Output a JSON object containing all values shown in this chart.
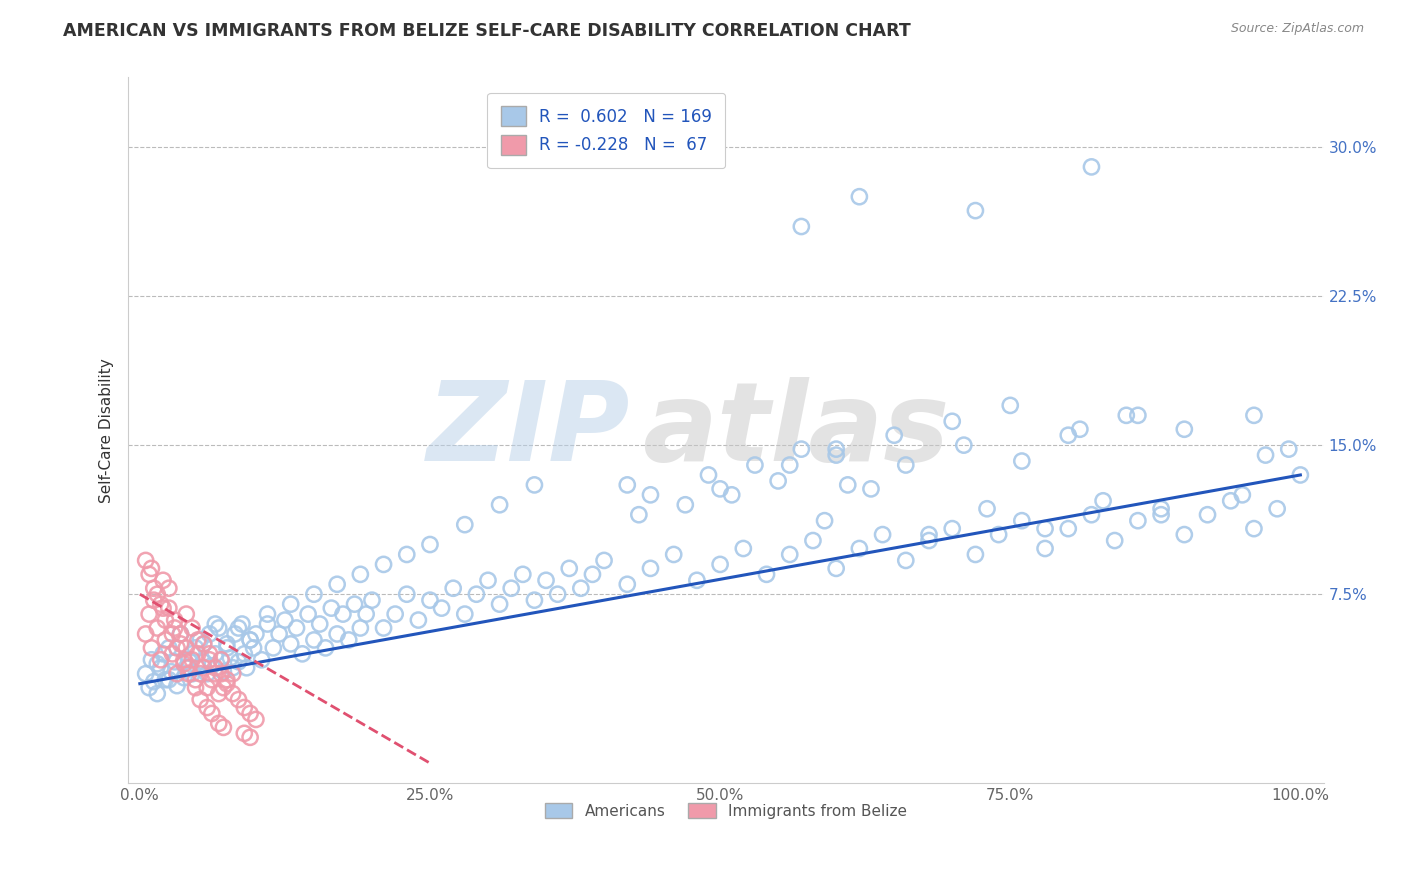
{
  "title": "AMERICAN VS IMMIGRANTS FROM BELIZE SELF-CARE DISABILITY CORRELATION CHART",
  "source": "Source: ZipAtlas.com",
  "ylabel": "Self-Care Disability",
  "xlabel": "",
  "xlim": [
    -0.01,
    1.02
  ],
  "ylim": [
    -0.02,
    0.335
  ],
  "yticks": [
    0.075,
    0.15,
    0.225,
    0.3
  ],
  "ytick_labels": [
    "7.5%",
    "15.0%",
    "22.5%",
    "30.0%"
  ],
  "xticks": [
    0.0,
    0.25,
    0.5,
    0.75,
    1.0
  ],
  "xtick_labels": [
    "0.0%",
    "25.0%",
    "50.0%",
    "75.0%",
    "100.0%"
  ],
  "blue_R": 0.602,
  "blue_N": 169,
  "pink_R": -0.228,
  "pink_N": 67,
  "blue_color": "#A8C8E8",
  "pink_color": "#F09AAA",
  "blue_line_color": "#2255BB",
  "pink_line_color": "#E05070",
  "background_color": "#ffffff",
  "watermark_zip": "ZIP",
  "watermark_atlas": "atlas",
  "title_fontsize": 12.5,
  "axis_label_fontsize": 11,
  "tick_fontsize": 11,
  "legend_fontsize": 12,
  "blue_scatter_x": [
    0.005,
    0.008,
    0.01,
    0.012,
    0.015,
    0.018,
    0.02,
    0.022,
    0.025,
    0.027,
    0.03,
    0.032,
    0.035,
    0.038,
    0.04,
    0.042,
    0.045,
    0.048,
    0.05,
    0.052,
    0.055,
    0.058,
    0.06,
    0.062,
    0.065,
    0.068,
    0.07,
    0.072,
    0.075,
    0.078,
    0.08,
    0.082,
    0.085,
    0.088,
    0.09,
    0.092,
    0.095,
    0.098,
    0.1,
    0.105,
    0.11,
    0.115,
    0.12,
    0.125,
    0.13,
    0.135,
    0.14,
    0.145,
    0.15,
    0.155,
    0.16,
    0.165,
    0.17,
    0.175,
    0.18,
    0.185,
    0.19,
    0.195,
    0.2,
    0.21,
    0.22,
    0.23,
    0.24,
    0.25,
    0.26,
    0.27,
    0.28,
    0.29,
    0.3,
    0.31,
    0.32,
    0.33,
    0.34,
    0.35,
    0.36,
    0.37,
    0.38,
    0.39,
    0.4,
    0.42,
    0.44,
    0.46,
    0.48,
    0.5,
    0.52,
    0.54,
    0.56,
    0.58,
    0.6,
    0.62,
    0.64,
    0.66,
    0.68,
    0.7,
    0.72,
    0.74,
    0.76,
    0.78,
    0.8,
    0.82,
    0.84,
    0.86,
    0.88,
    0.9,
    0.92,
    0.94,
    0.96,
    0.98,
    1.0,
    0.015,
    0.025,
    0.035,
    0.045,
    0.055,
    0.065,
    0.075,
    0.085,
    0.095,
    0.11,
    0.13,
    0.15,
    0.17,
    0.19,
    0.21,
    0.23,
    0.25,
    0.28,
    0.31,
    0.34,
    0.42,
    0.5,
    0.56,
    0.6,
    0.65,
    0.7,
    0.75,
    0.8,
    0.85,
    0.9,
    0.44,
    0.49,
    0.53,
    0.57,
    0.61,
    0.66,
    0.71,
    0.76,
    0.81,
    0.86,
    0.57,
    0.62,
    0.72,
    0.82,
    0.96,
    0.97,
    0.99,
    0.43,
    0.47,
    0.51,
    0.55,
    0.59,
    0.63,
    0.68,
    0.73,
    0.78,
    0.83,
    0.88,
    0.95,
    0.6
  ],
  "blue_scatter_y": [
    0.035,
    0.028,
    0.042,
    0.031,
    0.025,
    0.038,
    0.045,
    0.032,
    0.048,
    0.036,
    0.041,
    0.029,
    0.055,
    0.033,
    0.038,
    0.042,
    0.035,
    0.048,
    0.038,
    0.052,
    0.041,
    0.035,
    0.055,
    0.039,
    0.045,
    0.058,
    0.042,
    0.036,
    0.05,
    0.043,
    0.038,
    0.055,
    0.041,
    0.06,
    0.045,
    0.038,
    0.052,
    0.048,
    0.055,
    0.042,
    0.06,
    0.048,
    0.055,
    0.062,
    0.05,
    0.058,
    0.045,
    0.065,
    0.052,
    0.06,
    0.048,
    0.068,
    0.055,
    0.065,
    0.052,
    0.07,
    0.058,
    0.065,
    0.072,
    0.058,
    0.065,
    0.075,
    0.062,
    0.072,
    0.068,
    0.078,
    0.065,
    0.075,
    0.082,
    0.07,
    0.078,
    0.085,
    0.072,
    0.082,
    0.075,
    0.088,
    0.078,
    0.085,
    0.092,
    0.08,
    0.088,
    0.095,
    0.082,
    0.09,
    0.098,
    0.085,
    0.095,
    0.102,
    0.088,
    0.098,
    0.105,
    0.092,
    0.102,
    0.108,
    0.095,
    0.105,
    0.112,
    0.098,
    0.108,
    0.115,
    0.102,
    0.112,
    0.118,
    0.105,
    0.115,
    0.122,
    0.108,
    0.118,
    0.135,
    0.04,
    0.032,
    0.055,
    0.045,
    0.05,
    0.06,
    0.048,
    0.058,
    0.052,
    0.065,
    0.07,
    0.075,
    0.08,
    0.085,
    0.09,
    0.095,
    0.1,
    0.11,
    0.12,
    0.13,
    0.13,
    0.128,
    0.14,
    0.148,
    0.155,
    0.162,
    0.17,
    0.155,
    0.165,
    0.158,
    0.125,
    0.135,
    0.14,
    0.148,
    0.13,
    0.14,
    0.15,
    0.142,
    0.158,
    0.165,
    0.26,
    0.275,
    0.268,
    0.29,
    0.165,
    0.145,
    0.148,
    0.115,
    0.12,
    0.125,
    0.132,
    0.112,
    0.128,
    0.105,
    0.118,
    0.108,
    0.122,
    0.115,
    0.125,
    0.145
  ],
  "pink_scatter_x": [
    0.005,
    0.008,
    0.01,
    0.012,
    0.015,
    0.018,
    0.02,
    0.022,
    0.025,
    0.028,
    0.03,
    0.032,
    0.035,
    0.038,
    0.04,
    0.042,
    0.045,
    0.048,
    0.05,
    0.052,
    0.055,
    0.058,
    0.06,
    0.062,
    0.065,
    0.068,
    0.07,
    0.072,
    0.075,
    0.08,
    0.085,
    0.09,
    0.095,
    0.1,
    0.01,
    0.015,
    0.02,
    0.025,
    0.03,
    0.035,
    0.04,
    0.045,
    0.05,
    0.055,
    0.06,
    0.065,
    0.07,
    0.075,
    0.08,
    0.005,
    0.008,
    0.012,
    0.018,
    0.022,
    0.028,
    0.032,
    0.038,
    0.042,
    0.048,
    0.052,
    0.058,
    0.062,
    0.068,
    0.072,
    0.09,
    0.095
  ],
  "pink_scatter_y": [
    0.055,
    0.065,
    0.048,
    0.072,
    0.058,
    0.042,
    0.068,
    0.052,
    0.078,
    0.045,
    0.062,
    0.035,
    0.055,
    0.042,
    0.048,
    0.038,
    0.058,
    0.032,
    0.045,
    0.035,
    0.05,
    0.028,
    0.042,
    0.032,
    0.038,
    0.025,
    0.035,
    0.028,
    0.032,
    0.025,
    0.022,
    0.018,
    0.015,
    0.012,
    0.088,
    0.075,
    0.082,
    0.068,
    0.058,
    0.05,
    0.065,
    0.042,
    0.052,
    0.038,
    0.045,
    0.035,
    0.042,
    0.03,
    0.035,
    0.092,
    0.085,
    0.078,
    0.07,
    0.062,
    0.055,
    0.048,
    0.04,
    0.035,
    0.028,
    0.022,
    0.018,
    0.015,
    0.01,
    0.008,
    0.005,
    0.003
  ],
  "blue_line_x0": 0.0,
  "blue_line_y0": 0.03,
  "blue_line_x1": 1.0,
  "blue_line_y1": 0.135,
  "pink_line_x0": 0.0,
  "pink_line_y0": 0.075,
  "pink_line_x1": 0.25,
  "pink_line_y1": -0.01
}
